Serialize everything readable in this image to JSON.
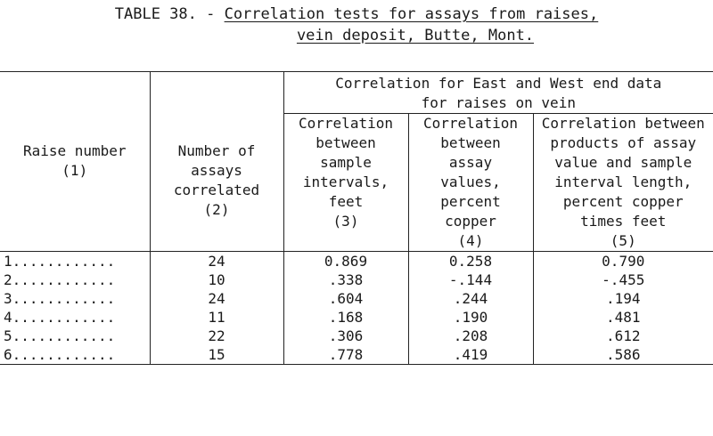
{
  "title": {
    "prefix": "TABLE 38. - ",
    "line1": "Correlation tests for assays from raises,",
    "line2": "vein deposit, Butte, Mont."
  },
  "headers": {
    "group": [
      "Correlation for East and West end data",
      "for raises on vein"
    ],
    "raise": [
      "Raise number",
      "(1)"
    ],
    "count": [
      "Number of",
      "assays",
      "correlated",
      "(2)"
    ],
    "col3": [
      "Correlation",
      "between",
      "sample",
      "intervals,",
      "feet",
      "(3)"
    ],
    "col4": [
      "Correlation",
      "between",
      "assay",
      "values,",
      "percent",
      "copper",
      "(4)"
    ],
    "col5": [
      "Correlation between",
      "products of assay",
      "value and sample",
      "interval length,",
      "percent copper",
      "times feet",
      "(5)"
    ]
  },
  "rows": [
    {
      "raise": "1............",
      "count": "24",
      "c3": "0.869",
      "c4": "0.258",
      "c5": "0.790"
    },
    {
      "raise": "2............",
      "count": "10",
      "c3": ".338",
      "c4": "-.144",
      "c5": "-.455"
    },
    {
      "raise": "3............",
      "count": "24",
      "c3": ".604",
      "c4": ".244",
      "c5": ".194"
    },
    {
      "raise": "4............",
      "count": "11",
      "c3": ".168",
      "c4": ".190",
      "c5": ".481"
    },
    {
      "raise": "5............",
      "count": "22",
      "c3": ".306",
      "c4": ".208",
      "c5": ".612"
    },
    {
      "raise": "6............",
      "count": "15",
      "c3": ".778",
      "c4": ".419",
      "c5": ".586"
    }
  ]
}
